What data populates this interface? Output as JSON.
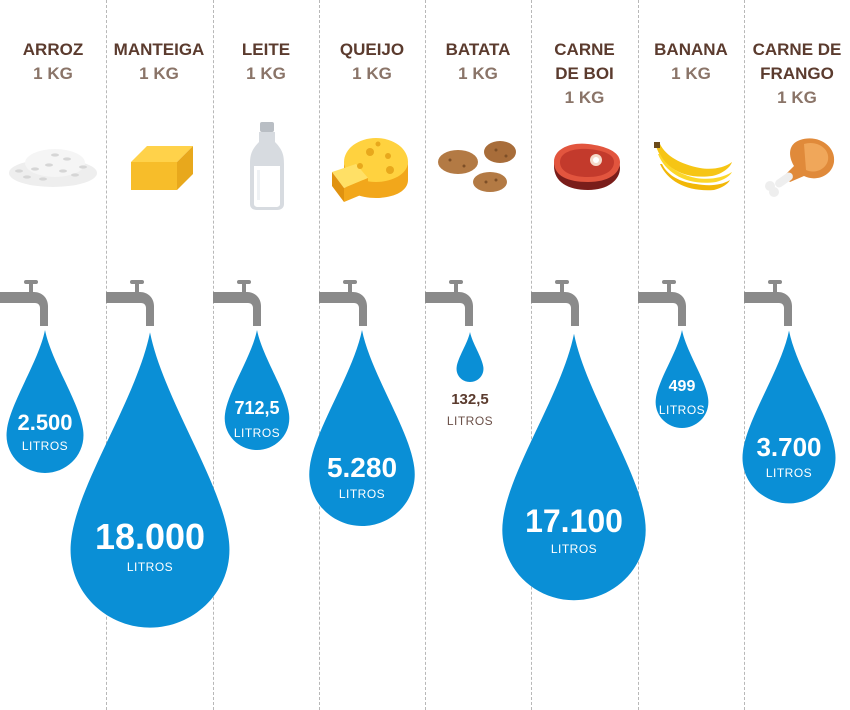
{
  "chart_data": {
    "type": "bar",
    "unit": "LITROS",
    "items": [
      {
        "name": "ARROZ",
        "unit": "1 KG",
        "value": 2500,
        "label": "2.500",
        "icon": "rice-icon"
      },
      {
        "name": "MANTEIGA",
        "unit": "1 KG",
        "value": 18000,
        "label": "18.000",
        "icon": "butter-icon"
      },
      {
        "name": "LEITE",
        "unit": "1 KG",
        "value": 712.5,
        "label": "712,5",
        "icon": "milk-bottle-icon"
      },
      {
        "name": "QUEIJO",
        "unit": "1 KG",
        "value": 5280,
        "label": "5.280",
        "icon": "cheese-icon"
      },
      {
        "name": "BATATA",
        "unit": "1 KG",
        "value": 132.5,
        "label": "132,5",
        "icon": "potato-icon"
      },
      {
        "name": "CARNE DE BOI",
        "unit": "1 KG",
        "value": 17100,
        "label": "17.100",
        "icon": "beef-steak-icon"
      },
      {
        "name": "BANANA",
        "unit": "1 KG",
        "value": 499,
        "label": "499",
        "icon": "banana-icon"
      },
      {
        "name": "CARNE DE FRANGO",
        "unit": "1 KG",
        "value": 3700,
        "label": "3.700",
        "icon": "chicken-leg-icon"
      }
    ]
  },
  "colors": {
    "drop": "#0a8fd6",
    "title": "#5b3b2e",
    "faucet": "#8a8a8a",
    "divider": "#b8b8b8"
  }
}
